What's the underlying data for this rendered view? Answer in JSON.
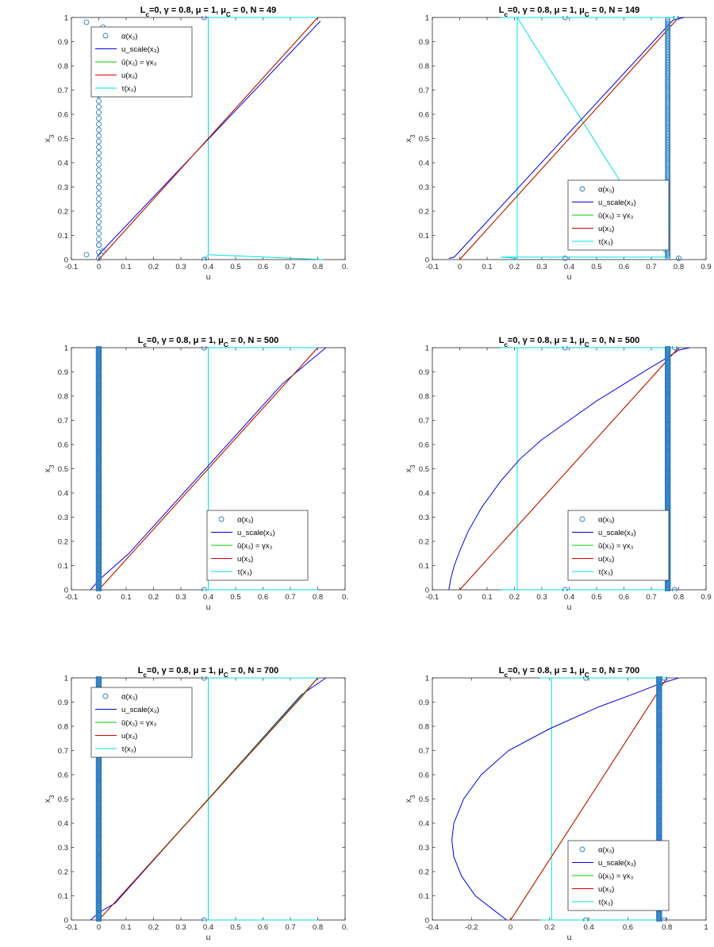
{
  "chart_data": [
    {
      "type": "line",
      "title": "L_c=0, γ = 0.8, μ = 1, μ_C = 0, N = 49",
      "xlabel": "u",
      "ylabel": "x_3",
      "xlim": [
        -0.1,
        0.9
      ],
      "ylim": [
        0,
        1
      ],
      "xticks": [
        "-0.1",
        "0",
        "0.1",
        "0.2",
        "0.3",
        "0.4",
        "0.5",
        "0.6",
        "0.7",
        "0.8",
        "0."
      ],
      "yticks": [
        "0",
        "0.1",
        "0.2",
        "0.3",
        "0.4",
        "0.5",
        "0.6",
        "0.7",
        "0.8",
        "0.9",
        "1"
      ],
      "legend": {
        "position": "top-left",
        "entries": [
          "α(x₃)",
          "u_scale(x₃)",
          "ū(x₃) = γx₃",
          "u(x₃)",
          "τ(x₃)"
        ]
      },
      "colors": {
        "alpha": "#2f7ec0",
        "u_scale": "#0000ee",
        "u_bar": "#00cc00",
        "u": "#e00000",
        "tau": "#00e0e0"
      },
      "series": [
        {
          "name": "α(x₃)",
          "kind": "markers",
          "points": [
            [
              -0.045,
              0.98
            ],
            [
              0.015,
              0.96
            ],
            [
              -0.045,
              0.02
            ],
            [
              0.015,
              0.035
            ],
            [
              0,
              0.005
            ],
            [
              0,
              0.03
            ],
            [
              0,
              0.06
            ]
          ],
          "column": {
            "x": 0,
            "y0": 0.06,
            "y1": 0.94,
            "n": 38
          }
        },
        {
          "name": "u_scale(x₃)",
          "points": [
            [
              -0.005,
              0.015
            ],
            [
              0.81,
              0.985
            ]
          ]
        },
        {
          "name": "ū(x₃) = γx₃",
          "points": [
            [
              0,
              0
            ],
            [
              0.8,
              1
            ]
          ]
        },
        {
          "name": "u(x₃)",
          "points": [
            [
              0,
              0
            ],
            [
              0.8,
              1
            ]
          ]
        },
        {
          "name": "τ(x₃)",
          "points": [
            [
              0.385,
              0
            ],
            [
              0.4,
              0.02
            ],
            [
              0.4,
              0.98
            ],
            [
              0.4,
              1
            ],
            [
              0.8,
              1
            ],
            [
              0.4,
              1
            ],
            [
              0.4,
              0.02
            ],
            [
              0.82,
              0
            ]
          ]
        }
      ],
      "tau_markers": [
        [
          0.385,
          1
        ],
        [
          0.385,
          0
        ]
      ]
    },
    {
      "type": "line",
      "title": "L_c=0, γ = 0.8, μ = 1, μ_C = 0, N = 149",
      "xlabel": "u",
      "ylabel": "x_3",
      "xlim": [
        -0.1,
        0.9
      ],
      "ylim": [
        0,
        1
      ],
      "xticks": [
        "-0.1",
        "0",
        "0.1",
        "0.2",
        "0.3",
        "0.4",
        "0.5",
        "0.6",
        "0.7",
        "0.8",
        "0.9"
      ],
      "yticks": [
        "0",
        "0.1",
        "0.2",
        "0.3",
        "0.4",
        "0.5",
        "0.6",
        "0.7",
        "0.8",
        "0.9",
        "1"
      ],
      "legend": {
        "position": "bottom-right",
        "entries": [
          "α(x₃)",
          "u_scale(x₃)",
          "ū(x₃) = γx₃",
          "u(x₃)",
          "τ(x₃)"
        ]
      },
      "colors": {
        "alpha": "#2f7ec0",
        "u_scale": "#0000ee",
        "u_bar": "#00cc00",
        "u": "#e00000",
        "tau": "#00e0e0"
      },
      "series": [
        {
          "name": "α(x₃)",
          "kind": "markers",
          "points": [
            [
              0.8,
              0.005
            ],
            [
              0.79,
              1
            ]
          ],
          "column": {
            "x": 0.76,
            "y0": 0.01,
            "y1": 0.99,
            "n": 149
          }
        },
        {
          "name": "u_scale(x₃)",
          "points": [
            [
              -0.04,
              0.005
            ],
            [
              -0.02,
              0.01
            ],
            [
              0.78,
              0.99
            ],
            [
              0.82,
              1
            ]
          ]
        },
        {
          "name": "ū(x₃) = γx₃",
          "points": [
            [
              0,
              0
            ],
            [
              0.8,
              1
            ]
          ]
        },
        {
          "name": "u(x₃)",
          "points": [
            [
              0,
              0
            ],
            [
              0.8,
              1
            ]
          ]
        },
        {
          "name": "τ(x₃)",
          "points": [
            [
              0.15,
              1
            ],
            [
              0.21,
              1
            ],
            [
              0.21,
              0.99
            ],
            [
              0.21,
              0.005
            ],
            [
              0.15,
              0.01
            ],
            [
              0.76,
              0.01
            ],
            [
              0.21,
              1
            ],
            [
              0.8,
              1
            ]
          ]
        }
      ],
      "tau_markers": [
        [
          0.385,
          1
        ],
        [
          0.385,
          0.005
        ]
      ]
    },
    {
      "type": "line",
      "title": "L_c=0, γ = 0.8, μ = 1, μ_C = 0, N = 500",
      "xlabel": "u",
      "ylabel": "x_3",
      "xlim": [
        -0.1,
        0.9
      ],
      "ylim": [
        0,
        1
      ],
      "xticks": [
        "-0.1",
        "0",
        "0.1",
        "0.2",
        "0.3",
        "0.4",
        "0.5",
        "0.6",
        "0.7",
        "0.8",
        "0."
      ],
      "yticks": [
        "0",
        "0.1",
        "0.2",
        "0.3",
        "0.4",
        "0.5",
        "0.6",
        "0.7",
        "0.8",
        "0.9",
        "1"
      ],
      "legend": {
        "position": "bottom-right",
        "entries": [
          "α(x₃)",
          "u_scale(x₃)",
          "ū(x₃) = γx₃",
          "u(x₃)",
          "τ(x₃)"
        ]
      },
      "colors": {
        "alpha": "#2f7ec0",
        "u_scale": "#0000ee",
        "u_bar": "#00cc00",
        "u": "#e00000",
        "tau": "#00e0e0"
      },
      "series": [
        {
          "name": "α(x₃)",
          "kind": "markers",
          "points": [],
          "column": {
            "x": 0,
            "y0": 0,
            "y1": 1,
            "n": 500
          }
        },
        {
          "name": "u_scale(x₃)",
          "points": [
            [
              -0.03,
              0
            ],
            [
              0,
              0.04
            ],
            [
              0.11,
              0.15
            ],
            [
              0.67,
              0.85
            ],
            [
              0.83,
              1
            ]
          ]
        },
        {
          "name": "ū(x₃) = γx₃",
          "points": [
            [
              0,
              0
            ],
            [
              0.8,
              1
            ]
          ]
        },
        {
          "name": "u(x₃)",
          "points": [
            [
              0,
              0
            ],
            [
              0.68,
              0.85
            ],
            [
              0.8,
              1
            ]
          ]
        },
        {
          "name": "τ(x₃)",
          "points": [
            [
              0.385,
              0
            ],
            [
              0.4,
              0
            ],
            [
              0.4,
              1
            ],
            [
              0.8,
              1
            ],
            [
              0.4,
              1
            ],
            [
              0.4,
              0
            ],
            [
              0.8,
              0
            ]
          ]
        }
      ],
      "tau_markers": [
        [
          0.385,
          1
        ],
        [
          0.385,
          0
        ]
      ]
    },
    {
      "type": "line",
      "title": "L_c=0, γ = 0.8, μ = 1, μ_C = 0, N = 500",
      "xlabel": "u",
      "ylabel": "x_3",
      "xlim": [
        -0.1,
        0.9
      ],
      "ylim": [
        0,
        1
      ],
      "xticks": [
        "-0.1",
        "0",
        "0.1",
        "0.2",
        "0.3",
        "0.4",
        "0.5",
        "0.6",
        "0.7",
        "0.8",
        "0.9"
      ],
      "yticks": [
        "0",
        "0.1",
        "0.2",
        "0.3",
        "0.4",
        "0.5",
        "0.6",
        "0.7",
        "0.8",
        "0.9",
        "1"
      ],
      "legend": {
        "position": "bottom-right",
        "entries": [
          "α(x₃)",
          "u_scale(x₃)",
          "ū(x₃) = γx₃",
          "u(x₃)",
          "τ(x₃)"
        ]
      },
      "colors": {
        "alpha": "#2f7ec0",
        "u_scale": "#0000ee",
        "u_bar": "#00cc00",
        "u": "#e00000",
        "tau": "#00e0e0"
      },
      "series": [
        {
          "name": "α(x₃)",
          "kind": "markers",
          "points": [
            [
              0.785,
              1
            ],
            [
              0.785,
              0
            ]
          ],
          "column": {
            "x": 0.76,
            "y0": 0,
            "y1": 1,
            "n": 500
          }
        },
        {
          "name": "u_scale(x₃)",
          "points": [
            [
              -0.04,
              0
            ],
            [
              -0.032,
              0.05
            ],
            [
              -0.02,
              0.1
            ],
            [
              0.0,
              0.16
            ],
            [
              0.03,
              0.24
            ],
            [
              0.08,
              0.34
            ],
            [
              0.15,
              0.45
            ],
            [
              0.22,
              0.54
            ],
            [
              0.3,
              0.62
            ],
            [
              0.4,
              0.7
            ],
            [
              0.5,
              0.78
            ],
            [
              0.6,
              0.85
            ],
            [
              0.7,
              0.92
            ],
            [
              0.76,
              0.96
            ],
            [
              0.8,
              0.99
            ],
            [
              0.84,
              1
            ]
          ]
        },
        {
          "name": "ū(x₃) = γx₃",
          "points": [
            [
              0,
              0
            ],
            [
              0.8,
              1
            ]
          ]
        },
        {
          "name": "u(x₃)",
          "points": [
            [
              0,
              0
            ],
            [
              0.8,
              1
            ]
          ]
        },
        {
          "name": "τ(x₃)",
          "points": [
            [
              0.15,
              1
            ],
            [
              0.21,
              1
            ],
            [
              0.21,
              0
            ],
            [
              0.15,
              0
            ],
            [
              0.76,
              0
            ],
            [
              0.21,
              0
            ],
            [
              0.21,
              1
            ],
            [
              0.8,
              1
            ]
          ]
        }
      ],
      "tau_markers": [
        [
          0.385,
          1
        ],
        [
          0.385,
          0
        ]
      ]
    },
    {
      "type": "line",
      "title": "L_c=0, γ = 0.8, μ = 1, μ_C = 0, N = 700",
      "xlabel": "u",
      "ylabel": "x_3",
      "xlim": [
        -0.1,
        0.9
      ],
      "ylim": [
        0,
        1
      ],
      "xticks": [
        "-0.1",
        "0",
        "0.1",
        "0.2",
        "0.3",
        "0.4",
        "0.5",
        "0.6",
        "0.7",
        "0.8",
        "0."
      ],
      "yticks": [
        "0",
        "0.1",
        "0.2",
        "0.3",
        "0.4",
        "0.5",
        "0.6",
        "0.7",
        "0.8",
        "0.9",
        "1"
      ],
      "legend": {
        "position": "top-left",
        "entries": [
          "α(x₃)",
          "u_scale(x₃)",
          "ū(x₃) = γx₃",
          "u(x₃)",
          "τ(x₃)"
        ]
      },
      "colors": {
        "alpha": "#2f7ec0",
        "u_scale": "#0000ee",
        "u_bar": "#00cc00",
        "u": "#e00000",
        "tau": "#00e0e0"
      },
      "series": [
        {
          "name": "α(x₃)",
          "kind": "markers",
          "points": [],
          "column": {
            "x": 0,
            "y0": 0,
            "y1": 1,
            "n": 700
          }
        },
        {
          "name": "u_scale(x₃)",
          "points": [
            [
              -0.03,
              0
            ],
            [
              0,
              0.03
            ],
            [
              0.06,
              0.07
            ],
            [
              0.74,
              0.93
            ],
            [
              0.83,
              1
            ]
          ]
        },
        {
          "name": "ū(x₃) = γx₃",
          "points": [
            [
              0,
              0
            ],
            [
              0.8,
              1
            ]
          ]
        },
        {
          "name": "u(x₃)",
          "points": [
            [
              0,
              0
            ],
            [
              0.74,
              0.92
            ],
            [
              0.8,
              1
            ]
          ]
        },
        {
          "name": "τ(x₃)",
          "points": [
            [
              0.385,
              0
            ],
            [
              0.4,
              0
            ],
            [
              0.4,
              1
            ],
            [
              0.8,
              1
            ],
            [
              0.4,
              1
            ],
            [
              0.4,
              0
            ],
            [
              0.8,
              0
            ]
          ]
        }
      ],
      "tau_markers": [
        [
          0.385,
          1
        ],
        [
          0.385,
          0
        ]
      ]
    },
    {
      "type": "line",
      "title": "L_c=0, γ = 0.8, μ = 1, μ_C = 0, N = 700",
      "xlabel": "u",
      "ylabel": "x_3",
      "xlim": [
        -0.4,
        1
      ],
      "ylim": [
        0,
        1
      ],
      "xticks": [
        "-0.4",
        "-0.2",
        "0",
        "0.2",
        "0.4",
        "0.6",
        "0.8",
        "1"
      ],
      "yticks": [
        "0",
        "0.1",
        "0.2",
        "0.3",
        "0.4",
        "0.5",
        "0.6",
        "0.7",
        "0.8",
        "0.9",
        "1"
      ],
      "legend": {
        "position": "bottom-right",
        "entries": [
          "α(x₃)",
          "u_scale(x₃)",
          "ū(x₃) = γx₃",
          "u(x₃)",
          "τ(x₃)"
        ]
      },
      "colors": {
        "alpha": "#2f7ec0",
        "u_scale": "#0000ee",
        "u_bar": "#00cc00",
        "u": "#e00000",
        "tau": "#00e0e0"
      },
      "series": [
        {
          "name": "α(x₃)",
          "kind": "markers",
          "points": [
            [
              0.785,
              1
            ],
            [
              0.785,
              0
            ]
          ],
          "column": {
            "x": 0.76,
            "y0": 0,
            "y1": 1,
            "n": 700
          }
        },
        {
          "name": "u_scale(x₃)",
          "points": [
            [
              -0.02,
              0
            ],
            [
              -0.1,
              0.05
            ],
            [
              -0.18,
              0.1
            ],
            [
              -0.25,
              0.18
            ],
            [
              -0.29,
              0.26
            ],
            [
              -0.3,
              0.33
            ],
            [
              -0.29,
              0.4
            ],
            [
              -0.24,
              0.5
            ],
            [
              -0.15,
              0.6
            ],
            [
              -0.01,
              0.7
            ],
            [
              0.2,
              0.79
            ],
            [
              0.45,
              0.88
            ],
            [
              0.65,
              0.94
            ],
            [
              0.76,
              0.975
            ],
            [
              0.86,
              1
            ]
          ]
        },
        {
          "name": "ū(x₃) = γx₃",
          "points": [
            [
              0,
              0
            ],
            [
              0.8,
              1
            ]
          ]
        },
        {
          "name": "u(x₃)",
          "points": [
            [
              0,
              0
            ],
            [
              0.8,
              1
            ]
          ]
        },
        {
          "name": "τ(x₃)",
          "points": [
            [
              0.15,
              1
            ],
            [
              0.21,
              1
            ],
            [
              0.21,
              0
            ],
            [
              0.15,
              0
            ],
            [
              0.76,
              0
            ],
            [
              0.21,
              0
            ],
            [
              0.21,
              1
            ],
            [
              0.8,
              1
            ]
          ]
        }
      ],
      "tau_markers": [
        [
          0.385,
          1
        ],
        [
          0.385,
          0
        ]
      ]
    }
  ]
}
